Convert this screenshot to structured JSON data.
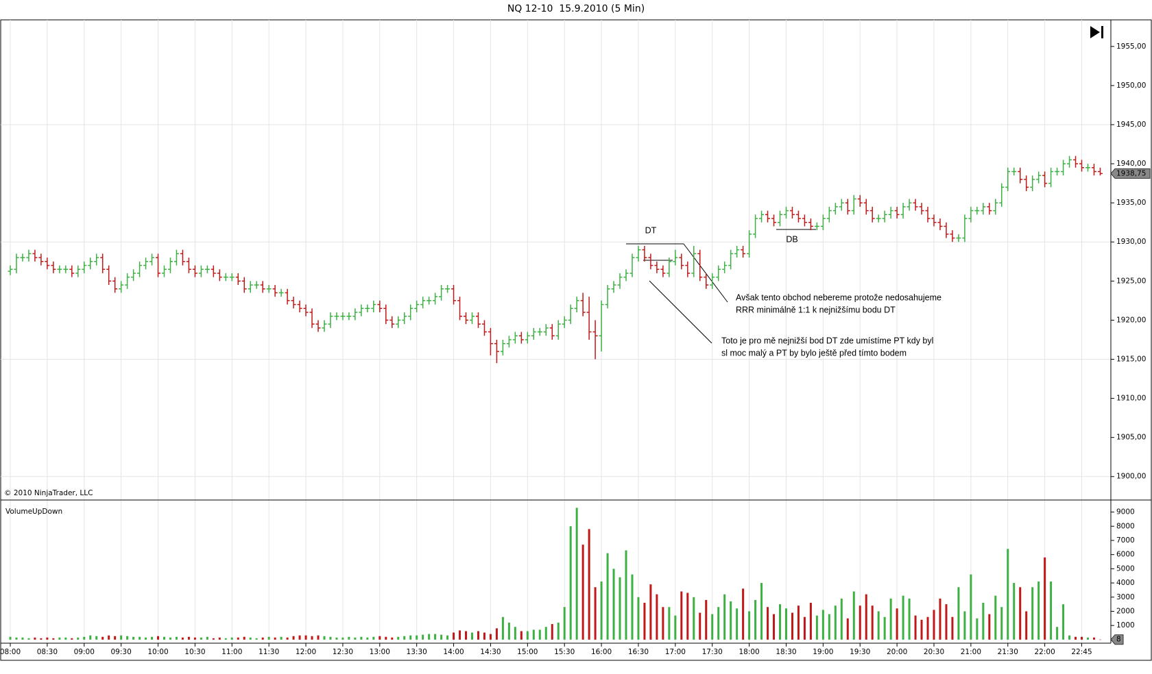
{
  "chart_data": [
    {
      "type": "ohlc",
      "title": "NQ 12-10  15.9.2010 (5 Min)",
      "copyright": "© 2010 NinjaTrader, LLC",
      "up_color": "#3cb043",
      "down_color": "#c01818",
      "categories": [
        "08:00",
        null,
        null,
        null,
        null,
        null,
        "08:30",
        null,
        null,
        null,
        null,
        null,
        "09:00",
        null,
        null,
        null,
        null,
        null,
        "09:30",
        null,
        null,
        null,
        null,
        null,
        "10:00",
        null,
        null,
        null,
        null,
        null,
        "10:30",
        null,
        null,
        null,
        null,
        null,
        "11:00",
        null,
        null,
        null,
        null,
        null,
        "11:30",
        null,
        null,
        null,
        null,
        null,
        "12:00",
        null,
        null,
        null,
        null,
        null,
        "12:30",
        null,
        null,
        null,
        null,
        null,
        "13:00",
        null,
        null,
        null,
        null,
        null,
        "13:30",
        null,
        null,
        null,
        null,
        null,
        "14:00",
        null,
        null,
        null,
        null,
        null,
        "14:30",
        null,
        null,
        null,
        null,
        null,
        "15:00",
        null,
        null,
        null,
        null,
        null,
        "15:30",
        null,
        null,
        null,
        null,
        null,
        "16:00",
        null,
        null,
        null,
        null,
        null,
        "16:30",
        null,
        null,
        null,
        null,
        null,
        "17:00",
        null,
        null,
        null,
        null,
        null,
        "17:30",
        null,
        null,
        null,
        null,
        null,
        "18:00",
        null,
        null,
        null,
        null,
        null,
        "18:30",
        null,
        null,
        null,
        null,
        null,
        "19:00",
        null,
        null,
        null,
        null,
        null,
        "19:30",
        null,
        null,
        null,
        null,
        null,
        "20:00",
        null,
        null,
        null,
        null,
        null,
        "20:30",
        null,
        null,
        null,
        null,
        null,
        "21:00",
        null,
        null,
        null,
        null,
        null,
        "21:30",
        null,
        null,
        null,
        null,
        null,
        "22:00",
        null,
        null,
        null,
        null,
        null,
        "22:45",
        null,
        null,
        null
      ],
      "open": [
        1926.25,
        1926.5,
        1928,
        1928,
        1928.5,
        1928,
        1927.5,
        1927,
        1926.5,
        1926.5,
        1926.5,
        1926,
        1926.5,
        1927,
        1927.5,
        1928,
        1926.5,
        1925,
        1924,
        1924.5,
        1925.5,
        1926,
        1927,
        1927.5,
        1928,
        1926,
        1926.5,
        1927.5,
        1928.5,
        1927.5,
        1926.5,
        1926,
        1926.5,
        1926.5,
        1926,
        1925.5,
        1925.5,
        1925.5,
        1925,
        1924,
        1924.5,
        1924.5,
        1924,
        1924,
        1923.5,
        1923.5,
        1922.5,
        1922,
        1921.5,
        1921,
        1919.5,
        1919,
        1919.5,
        1920.5,
        1920.5,
        1920.5,
        1920.5,
        1921,
        1921.5,
        1921.5,
        1922,
        1921.5,
        1920,
        1919.5,
        1920,
        1920.5,
        1921.5,
        1922,
        1922.5,
        1922.5,
        1923,
        1924,
        1924,
        1922.5,
        1920.5,
        1920,
        1920.5,
        1919.5,
        1918.5,
        1917,
        1916,
        1917,
        1917.5,
        1918,
        1917.5,
        1918,
        1918.5,
        1918.5,
        1919,
        1918,
        1919.5,
        1920,
        1921.5,
        1922.5,
        1921,
        1918.5,
        1918,
        1922,
        1924,
        1924.5,
        1925.5,
        1926,
        1928,
        1929,
        1928,
        1927,
        1926.5,
        1926,
        1927.5,
        1928,
        1927,
        1926,
        1928.5,
        1925.5,
        1924.5,
        1925.5,
        1926.5,
        1927,
        1928.5,
        1929,
        1928.5,
        1931,
        1933,
        1933.5,
        1933,
        1932.5,
        1933.5,
        1934,
        1933.5,
        1933,
        1932.5,
        1932,
        1932,
        1933,
        1934,
        1934.5,
        1935,
        1934,
        1935.5,
        1935,
        1934,
        1933,
        1933,
        1933.5,
        1934,
        1933.5,
        1934.5,
        1935,
        1934.5,
        1934,
        1933,
        1932.5,
        1932,
        1931,
        1930.5,
        1930.5,
        1933,
        1934,
        1934,
        1934.5,
        1934,
        1935,
        1937,
        1939,
        1939,
        1938,
        1937,
        1938,
        1938.5,
        1937.5,
        1939,
        1939,
        1940,
        1940.5,
        1940,
        1939.5,
        1939.5,
        1939
      ],
      "high": [
        1927,
        1928.5,
        1928.5,
        1929,
        1929,
        1928.5,
        1928,
        1927.5,
        1927,
        1927,
        1927,
        1927,
        1927.5,
        1928,
        1928.5,
        1928.5,
        1927,
        1925.5,
        1925,
        1926,
        1926.5,
        1927.5,
        1928,
        1928.5,
        1928.5,
        1927,
        1928,
        1929,
        1929,
        1928,
        1927,
        1927,
        1927,
        1927,
        1926.5,
        1926,
        1926,
        1926,
        1925.5,
        1925,
        1925,
        1925,
        1924.5,
        1924.5,
        1924,
        1924,
        1923,
        1922.5,
        1922,
        1921.5,
        1920,
        1920,
        1921,
        1921,
        1921,
        1921,
        1921.5,
        1922,
        1922,
        1922.5,
        1922.5,
        1922,
        1920.5,
        1920.5,
        1921,
        1922,
        1922.5,
        1923,
        1923,
        1923.5,
        1924.5,
        1924.5,
        1924.5,
        1923,
        1921,
        1921,
        1921,
        1920,
        1919,
        1917.5,
        1917.5,
        1918,
        1918.5,
        1918.5,
        1918.5,
        1919,
        1919,
        1919.5,
        1919.5,
        1920,
        1920.5,
        1922,
        1923,
        1923.5,
        1923,
        1920,
        1922.5,
        1924.5,
        1925,
        1926,
        1926.5,
        1928.5,
        1929.5,
        1929.5,
        1928.5,
        1927.5,
        1927,
        1928,
        1929,
        1928.5,
        1927.5,
        1929.5,
        1929,
        1926,
        1926,
        1927,
        1927.5,
        1929,
        1929.5,
        1929.5,
        1931.5,
        1933.5,
        1934,
        1934,
        1933.5,
        1934,
        1934.5,
        1934.5,
        1934,
        1933.5,
        1933,
        1932.5,
        1933.5,
        1934.5,
        1935,
        1935.5,
        1935.5,
        1936,
        1936,
        1935.5,
        1934.5,
        1933.5,
        1934,
        1934.5,
        1934.5,
        1935,
        1935.5,
        1935.5,
        1935,
        1934.5,
        1933.5,
        1933,
        1932.5,
        1931.5,
        1931,
        1933.5,
        1934.5,
        1934.5,
        1935,
        1935,
        1935.5,
        1937.5,
        1939.5,
        1939.5,
        1939.5,
        1938.5,
        1938.5,
        1939,
        1939,
        1939.5,
        1939.5,
        1940.5,
        1941,
        1941,
        1940.5,
        1940,
        1940,
        1939.5
      ],
      "low": [
        1925.75,
        1926,
        1927.5,
        1927.5,
        1927.5,
        1927,
        1926.5,
        1926,
        1926,
        1926,
        1925.5,
        1925.5,
        1926,
        1926.5,
        1927,
        1926,
        1924.5,
        1923.5,
        1923.5,
        1924,
        1925,
        1925.5,
        1926.5,
        1927,
        1925.5,
        1925.5,
        1926,
        1927,
        1927,
        1926,
        1925.5,
        1925.5,
        1926,
        1925.5,
        1925,
        1925,
        1925,
        1924.5,
        1923.5,
        1923.5,
        1924,
        1923.5,
        1923.5,
        1923,
        1923,
        1922,
        1921.5,
        1921,
        1920.5,
        1919,
        1918.5,
        1918.5,
        1919,
        1920,
        1920,
        1920,
        1920,
        1920.5,
        1921,
        1921,
        1921,
        1919.5,
        1919,
        1919,
        1919.5,
        1920,
        1921,
        1921.5,
        1922,
        1922,
        1922.5,
        1923.5,
        1922,
        1920,
        1919.5,
        1919.5,
        1919,
        1918,
        1915.5,
        1914.5,
        1915.5,
        1916.5,
        1917,
        1917,
        1917,
        1917.5,
        1918,
        1918,
        1917.5,
        1917.5,
        1919,
        1919.5,
        1921,
        1920.5,
        1917.5,
        1915,
        1916,
        1921.5,
        1923.5,
        1924,
        1925,
        1925.5,
        1927.5,
        1927.5,
        1926.5,
        1926,
        1925.5,
        1925.5,
        1927,
        1926.5,
        1925.5,
        1925.5,
        1925,
        1924,
        1924,
        1925,
        1926,
        1926.5,
        1928,
        1928,
        1928,
        1930.5,
        1932.5,
        1932.5,
        1932,
        1932,
        1933,
        1933,
        1932.5,
        1932,
        1931.5,
        1931.5,
        1931.5,
        1932.5,
        1933.5,
        1934,
        1933.5,
        1933.5,
        1934.5,
        1933.5,
        1932.5,
        1932.5,
        1932.5,
        1933,
        1933,
        1933,
        1934,
        1934,
        1933.5,
        1932.5,
        1932,
        1931.5,
        1930.5,
        1930,
        1930,
        1930,
        1932.5,
        1933.5,
        1933.5,
        1933.5,
        1933.5,
        1934.5,
        1936.5,
        1938.5,
        1937.5,
        1936.5,
        1936.5,
        1937.5,
        1937,
        1937,
        1938.5,
        1938.5,
        1939.5,
        1939.5,
        1939,
        1939,
        1938.5,
        1938.5
      ],
      "close": [
        1926.5,
        1928,
        1928,
        1928.5,
        1928,
        1927.5,
        1927,
        1926.5,
        1926.5,
        1926.5,
        1926,
        1926.5,
        1927,
        1927.5,
        1928,
        1926.5,
        1925,
        1924,
        1924.5,
        1925.5,
        1926,
        1927,
        1927.5,
        1928,
        1926,
        1926.5,
        1927.5,
        1928.5,
        1927.5,
        1926.5,
        1926,
        1926.5,
        1926.5,
        1926,
        1925.5,
        1925.5,
        1925.5,
        1925,
        1924,
        1924.5,
        1924.5,
        1924,
        1924,
        1923.5,
        1923.5,
        1922.5,
        1922,
        1921.5,
        1921,
        1919.5,
        1919,
        1919.5,
        1920.5,
        1920.5,
        1920.5,
        1920.5,
        1921,
        1921.5,
        1921.5,
        1922,
        1921.5,
        1920,
        1919.5,
        1920,
        1920.5,
        1921.5,
        1922,
        1922.5,
        1922.5,
        1923,
        1924,
        1924,
        1922.5,
        1920.5,
        1920,
        1920.5,
        1919.5,
        1918.5,
        1917,
        1916,
        1917,
        1917.5,
        1918,
        1917.5,
        1918,
        1918.5,
        1918.5,
        1919,
        1918,
        1919.5,
        1920,
        1921.5,
        1922.5,
        1921,
        1918.5,
        1918,
        1922,
        1924,
        1924.5,
        1925.5,
        1926,
        1928,
        1929,
        1928,
        1927,
        1926.5,
        1926,
        1927.5,
        1928,
        1927,
        1926,
        1928.5,
        1925.5,
        1924.5,
        1925.5,
        1926.5,
        1927,
        1928.5,
        1929,
        1928.5,
        1931,
        1933,
        1933.5,
        1933,
        1932.5,
        1933.5,
        1934,
        1933.5,
        1933,
        1932.5,
        1932,
        1932,
        1933,
        1934,
        1934.5,
        1935,
        1934,
        1935.5,
        1935,
        1934,
        1933,
        1933,
        1933.5,
        1934,
        1933.5,
        1934.5,
        1935,
        1934.5,
        1934,
        1933,
        1932.5,
        1932,
        1931,
        1930.5,
        1930.5,
        1933,
        1934,
        1934,
        1934.5,
        1934,
        1935,
        1937,
        1939,
        1939,
        1938,
        1937,
        1938,
        1938.5,
        1937.5,
        1939,
        1939,
        1940,
        1940.5,
        1940,
        1939.5,
        1939.5,
        1939,
        1938.75
      ],
      "last_price": {
        "value": 1938.75,
        "label": "1938,75"
      },
      "ylim": [
        1897,
        1958.4
      ],
      "yticks": [
        {
          "value": 1900,
          "label": "1900,00"
        },
        {
          "value": 1905,
          "label": "1905,00"
        },
        {
          "value": 1910,
          "label": "1910,00"
        },
        {
          "value": 1915,
          "label": "1915,00"
        },
        {
          "value": 1920,
          "label": "1920,00"
        },
        {
          "value": 1925,
          "label": "1925,00"
        },
        {
          "value": 1930,
          "label": "1930,00"
        },
        {
          "value": 1935,
          "label": "1935,00"
        },
        {
          "value": 1940,
          "label": "1940,00"
        },
        {
          "value": 1945,
          "label": "1945,00"
        },
        {
          "value": 1950,
          "label": "1950,00"
        },
        {
          "value": 1955,
          "label": "1955,00"
        }
      ],
      "ygrid": [
        1900,
        1915,
        1930,
        1945
      ],
      "annotations": [
        "DT",
        "DB",
        "Avšak tento obchod nebereme protože nedosahujeme",
        "RRR minimálně 1:1 k nejnižšímu bodu DT",
        "Toto je pro mě nejnižší bod DT zde umístíme PT kdy byl",
        "sl moc malý a PT by bylo ještě před tímto bodem"
      ]
    },
    {
      "type": "bar",
      "title": "VolumeUpDown",
      "values": [
        200,
        150,
        150,
        100,
        150,
        100,
        150,
        100,
        150,
        150,
        100,
        150,
        200,
        300,
        250,
        200,
        300,
        250,
        300,
        250,
        200,
        200,
        150,
        200,
        250,
        200,
        150,
        200,
        150,
        200,
        150,
        150,
        200,
        100,
        150,
        100,
        150,
        150,
        200,
        150,
        100,
        150,
        200,
        150,
        200,
        150,
        250,
        300,
        300,
        250,
        300,
        250,
        200,
        150,
        150,
        200,
        150,
        200,
        150,
        200,
        250,
        200,
        150,
        200,
        250,
        300,
        300,
        350,
        400,
        400,
        350,
        300,
        500,
        650,
        600,
        500,
        600,
        500,
        400,
        800,
        1600,
        1200,
        900,
        600,
        600,
        700,
        700,
        900,
        1100,
        1200,
        2300,
        8000,
        9300,
        6700,
        7800,
        3700,
        4100,
        6100,
        5000,
        4400,
        6300,
        4600,
        3000,
        2600,
        3900,
        3200,
        2300,
        2300,
        1700,
        3400,
        3300,
        3000,
        1900,
        2800,
        1800,
        2300,
        3200,
        2700,
        2200,
        3600,
        2000,
        2800,
        4000,
        2300,
        1800,
        2500,
        2200,
        1900,
        2400,
        1600,
        2600,
        1700,
        2100,
        1800,
        2400,
        2900,
        1500,
        3400,
        2400,
        3200,
        2400,
        2000,
        1600,
        2900,
        2200,
        3100,
        2900,
        1700,
        1400,
        1600,
        2100,
        2900,
        2500,
        1600,
        3700,
        2000,
        4600,
        1500,
        2600,
        1800,
        3100,
        2300,
        6400,
        4000,
        3700,
        2000,
        3700,
        4100,
        5800,
        4100,
        900,
        2500,
        300,
        200,
        200,
        150,
        150,
        8
      ],
      "ylim": [
        -200,
        9800
      ],
      "yticks": [
        1000,
        2000,
        3000,
        4000,
        5000,
        6000,
        7000,
        8000,
        9000
      ]
    }
  ]
}
